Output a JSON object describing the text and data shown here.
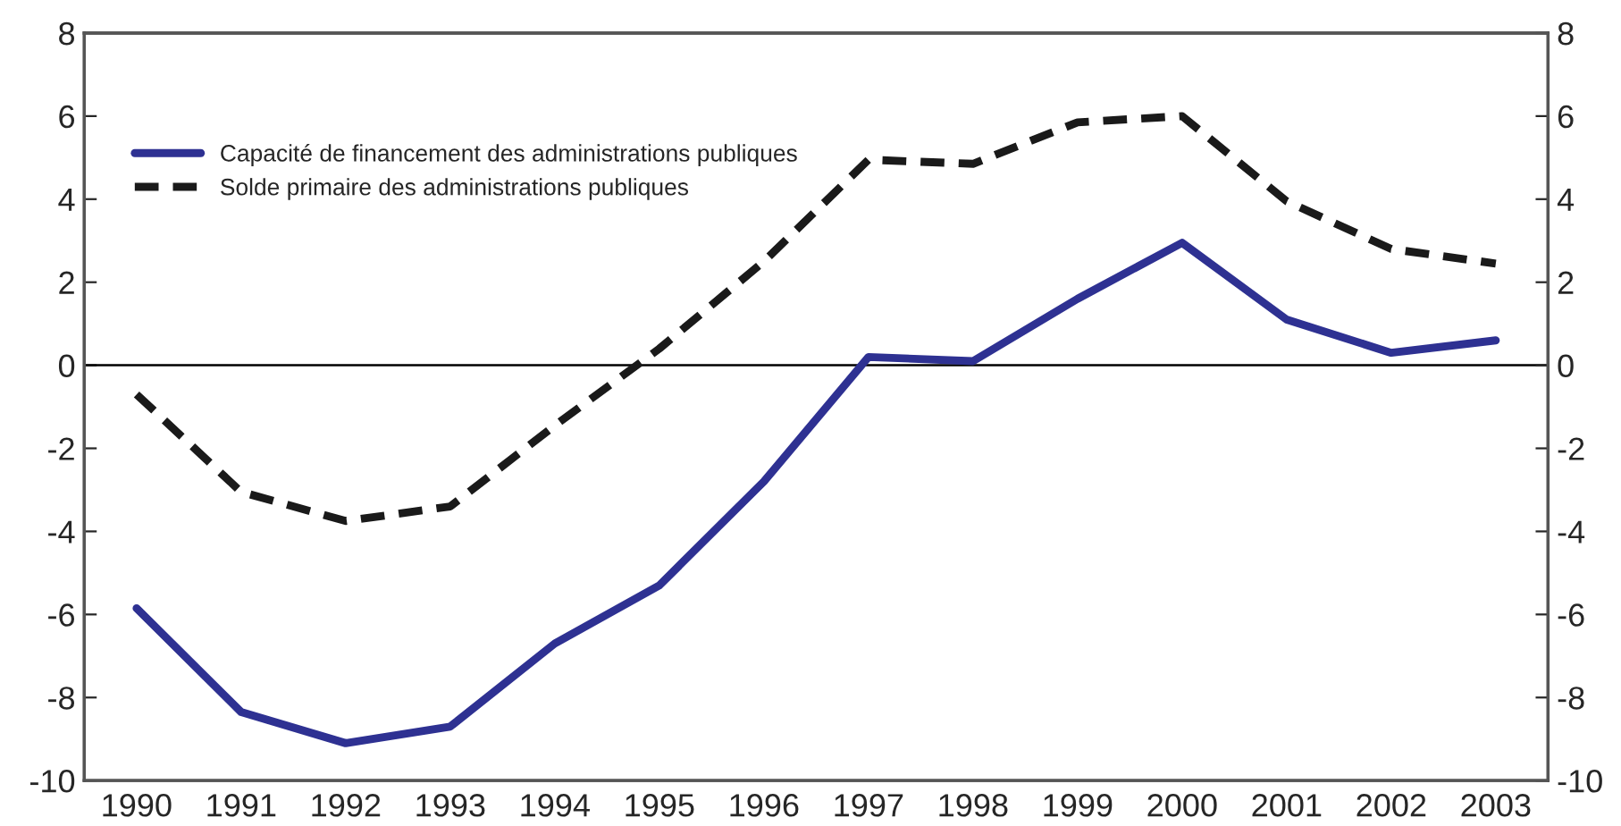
{
  "chart_data": {
    "type": "line",
    "categories": [
      "1990",
      "1991",
      "1992",
      "1993",
      "1994",
      "1995",
      "1996",
      "1997",
      "1998",
      "1999",
      "2000",
      "2001",
      "2002",
      "2003"
    ],
    "series": [
      {
        "name": "Capacité de financement des administrations publiques",
        "color": "#2e3192",
        "line_style": "solid",
        "values": [
          -5.85,
          -8.35,
          -9.1,
          -8.7,
          -6.7,
          -5.3,
          -2.8,
          0.2,
          0.1,
          1.6,
          2.95,
          1.1,
          0.3,
          0.6
        ]
      },
      {
        "name": "Solde primaire des administrations publiques",
        "color": "#1a1a1a",
        "line_style": "dashed",
        "values": [
          -0.7,
          -3.05,
          -3.75,
          -3.4,
          -1.45,
          0.4,
          2.5,
          4.95,
          4.85,
          5.85,
          6.0,
          3.95,
          2.8,
          2.45
        ]
      }
    ],
    "ylim": [
      -10,
      8
    ],
    "yticks": [
      -10,
      -8,
      -6,
      -4,
      -2,
      0,
      2,
      4,
      6,
      8
    ],
    "y2lim": [
      -10,
      8
    ],
    "y2ticks": [
      -10,
      -8,
      -6,
      -4,
      -2,
      0,
      2,
      4,
      6,
      8
    ],
    "ref_lines": [
      {
        "axis": "y",
        "value": 0,
        "color": "#000000"
      }
    ],
    "grid": false,
    "legend": "top left",
    "marker": "none"
  }
}
